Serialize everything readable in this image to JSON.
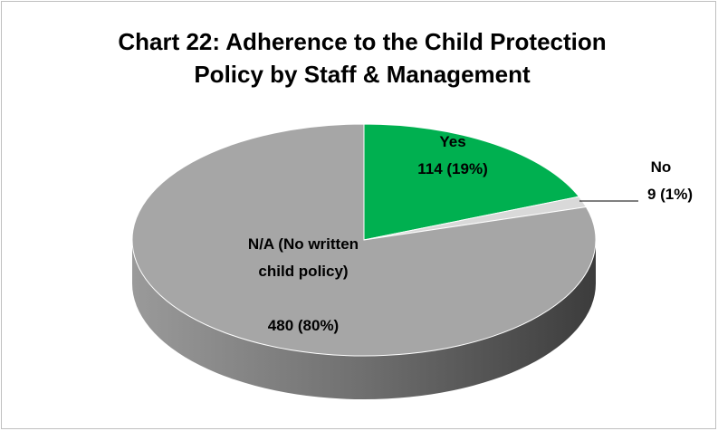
{
  "chart_data": {
    "type": "pie",
    "title": "Chart 22: Adherence to the Child Protection Policy by Staff & Management",
    "categories": [
      "Yes",
      "No",
      "N/A (No written child policy)"
    ],
    "values": [
      114,
      9,
      480
    ],
    "value_labels": [
      "114 (19%)",
      "9 (1%)",
      "480 (80%)"
    ],
    "colors": [
      "#00b050",
      "#d9d9d9",
      "#a6a6a6"
    ]
  }
}
